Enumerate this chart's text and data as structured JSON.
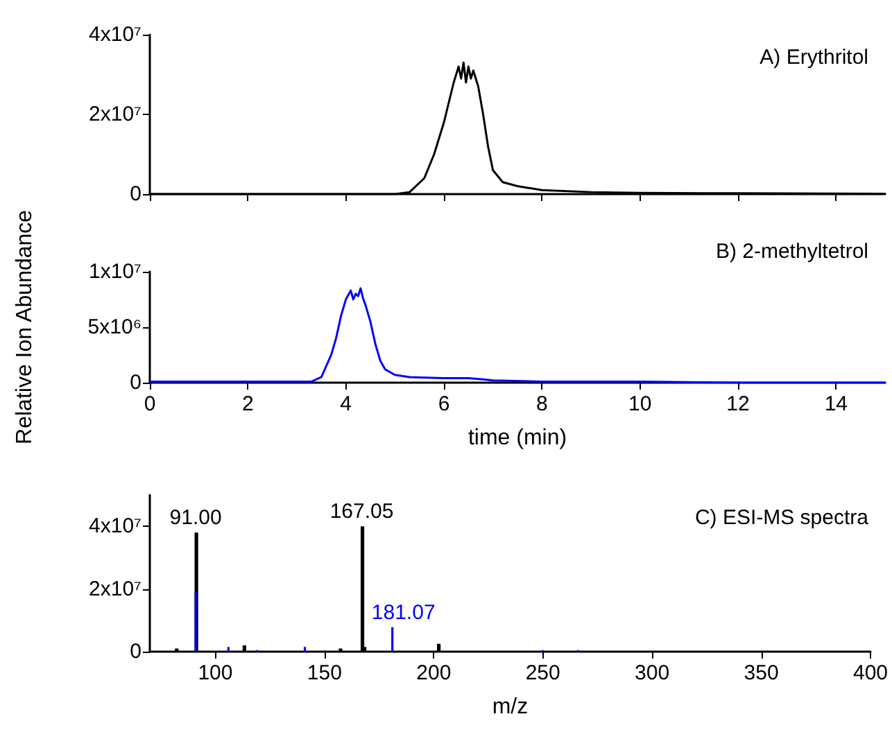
{
  "chart_data": [
    {
      "type": "line",
      "title": "A) Erythritol",
      "xlim": [
        0,
        15
      ],
      "xticks": [
        0,
        2,
        4,
        6,
        8,
        10,
        12,
        14
      ],
      "ylim": [
        0,
        40000000
      ],
      "yticks": [
        {
          "value": 0,
          "label": "0"
        },
        {
          "value": 20000000,
          "label": "2x10⁷"
        },
        {
          "value": 40000000,
          "label": "4x10⁷"
        }
      ],
      "tick_labels": "y",
      "line_style": "solid",
      "series": [
        {
          "color": "#000000",
          "x": [
            0,
            5.0,
            5.3,
            5.6,
            5.8,
            6.0,
            6.1,
            6.2,
            6.3,
            6.35,
            6.4,
            6.45,
            6.5,
            6.55,
            6.6,
            6.7,
            6.8,
            6.9,
            7.0,
            7.2,
            7.5,
            8,
            9,
            10,
            12,
            15
          ],
          "values": [
            0,
            0,
            500000,
            4000000,
            10000000,
            18000000,
            23000000,
            28000000,
            32000000,
            29000000,
            33000000,
            28000000,
            32000000,
            29000000,
            31000000,
            27000000,
            20000000,
            12000000,
            6000000,
            3000000,
            2000000,
            1000000,
            500000,
            300000,
            200000,
            100000
          ]
        }
      ]
    },
    {
      "type": "line",
      "title": "B) 2-methyltetrol",
      "xlabel": "time (min)",
      "ylabel": "Relative Ion Abundance",
      "xlim": [
        0,
        15
      ],
      "xticks": [
        0,
        2,
        4,
        6,
        8,
        10,
        12,
        14
      ],
      "ylim": [
        0,
        10000000
      ],
      "yticks": [
        {
          "value": 0,
          "label": "0"
        },
        {
          "value": 5000000,
          "label": "5x10⁶"
        },
        {
          "value": 10000000,
          "label": "1x10⁷"
        }
      ],
      "line_style": "solid",
      "series": [
        {
          "color": "#0000ff",
          "x": [
            0,
            3.3,
            3.5,
            3.7,
            3.8,
            3.9,
            4.0,
            4.1,
            4.15,
            4.2,
            4.25,
            4.3,
            4.35,
            4.4,
            4.5,
            4.6,
            4.7,
            4.8,
            5.0,
            5.3,
            6.0,
            6.5,
            6.8,
            7.0,
            8,
            10,
            12,
            15
          ],
          "values": [
            100000,
            100000,
            500000,
            2500000,
            4000000,
            6000000,
            7500000,
            8300000,
            7500000,
            8000000,
            7800000,
            8500000,
            7600000,
            7000000,
            5500000,
            3500000,
            2000000,
            1200000,
            700000,
            500000,
            400000,
            400000,
            300000,
            200000,
            100000,
            100000,
            0,
            0
          ]
        }
      ]
    },
    {
      "type": "bar",
      "title": "C) ESI-MS spectra",
      "xlabel": "m/z",
      "xlim": [
        70,
        400
      ],
      "xticks": [
        100,
        150,
        200,
        250,
        300,
        350,
        400
      ],
      "ylim": [
        0,
        50000000
      ],
      "yticks": [
        {
          "value": 0,
          "label": "0"
        },
        {
          "value": 20000000,
          "label": "2x10⁷"
        },
        {
          "value": 40000000,
          "label": "4x10⁷"
        }
      ],
      "annotations": [
        {
          "text": "91.00",
          "x": 91.0,
          "y": 38000000
        },
        {
          "text": "167.05",
          "x": 167.05,
          "y": 40000000
        },
        {
          "text": "181.07",
          "x": 181.07,
          "y": 7800000
        }
      ],
      "series": [
        {
          "color": "#000000",
          "x": [
            82,
            91.0,
            113,
            157,
            167.05,
            168,
            202
          ],
          "values": [
            1000000,
            38000000,
            2000000,
            1000000,
            40000000,
            1500000,
            2500000
          ]
        },
        {
          "color": "#0000ff",
          "x": [
            91.0,
            106,
            119,
            141,
            181.07,
            250,
            266
          ],
          "values": [
            19000000,
            1500000,
            500000,
            1500000,
            7800000,
            500000,
            500000
          ]
        }
      ]
    }
  ]
}
